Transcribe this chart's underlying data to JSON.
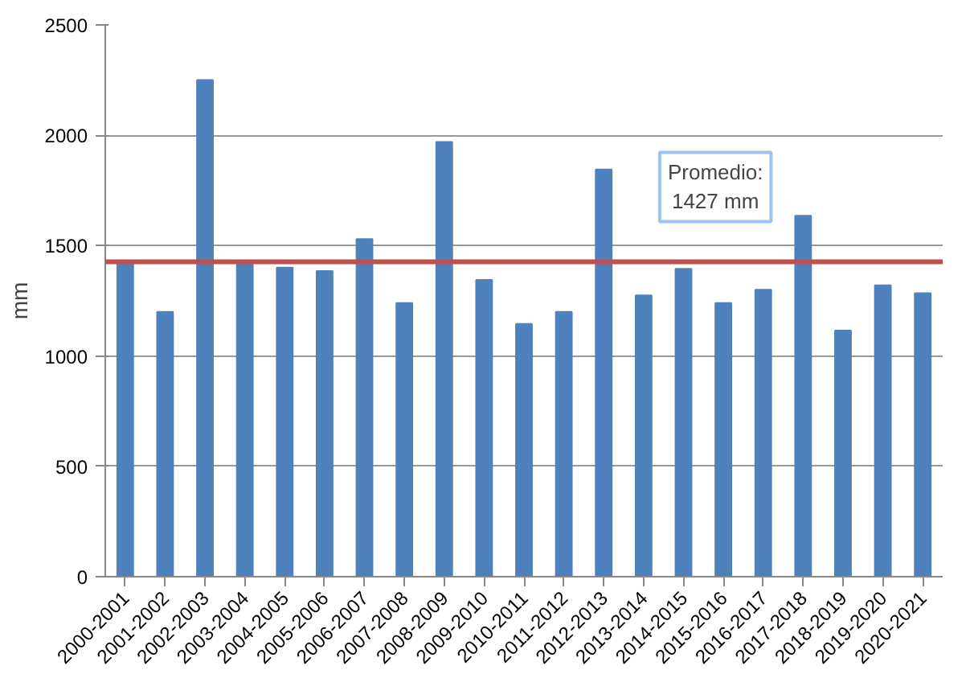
{
  "chart_data": {
    "type": "bar",
    "ylabel": "mm",
    "categories": [
      "2000-2001",
      "2001-2002",
      "2002-2003",
      "2003-2004",
      "2004-2005",
      "2005-2006",
      "2006-2007",
      "2007-2008",
      "2008-2009",
      "2009-2010",
      "2010-2011",
      "2011-2012",
      "2012-2013",
      "2013-2014",
      "2014-2015",
      "2015-2016",
      "2016-2017",
      "2017-2018",
      "2018-2019",
      "2019-2020",
      "2020-2021"
    ],
    "values": [
      1420,
      1200,
      2250,
      1420,
      1400,
      1385,
      1530,
      1240,
      1970,
      1345,
      1145,
      1200,
      1845,
      1275,
      1395,
      1240,
      1300,
      1635,
      1115,
      1320,
      1285
    ],
    "color": "#4f81bd",
    "ylim": [
      0,
      2500
    ],
    "yticks": [
      0,
      500,
      1000,
      1500,
      2000,
      2500
    ],
    "grid": "y",
    "ref_lines": [
      {
        "axis": "y",
        "value": 1427,
        "label": "Promedio:\n1427 mm",
        "color": "#c0504d"
      }
    ]
  }
}
